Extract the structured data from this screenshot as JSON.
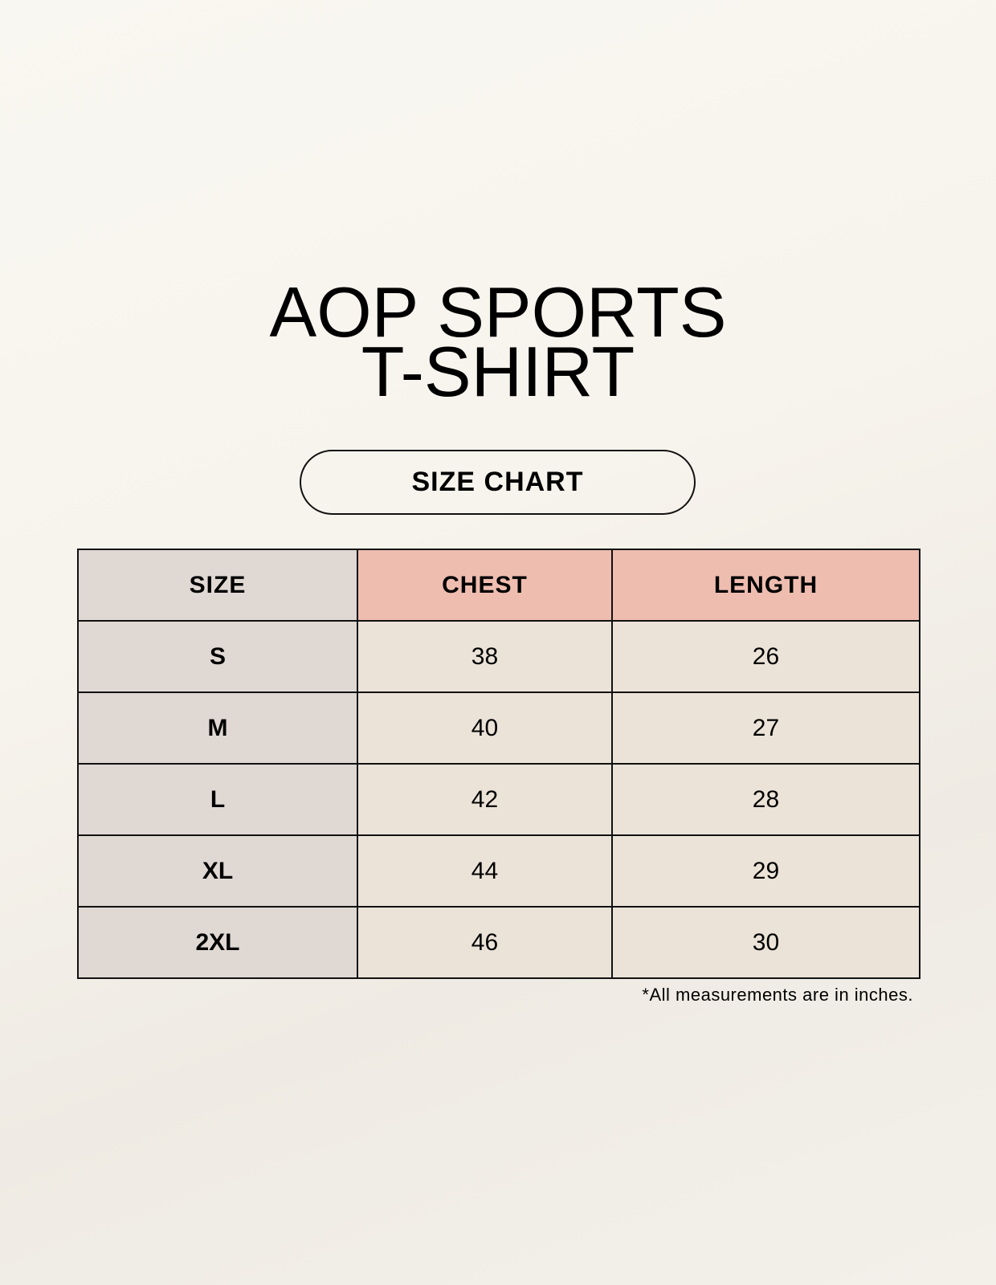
{
  "title": {
    "line1": "AOP SPORTS",
    "line2": "T-SHIRT"
  },
  "subtitle_pill": "SIZE CHART",
  "table": {
    "headers": [
      "SIZE",
      "CHEST",
      "LENGTH"
    ],
    "rows": [
      [
        "S",
        "38",
        "26"
      ],
      [
        "M",
        "40",
        "27"
      ],
      [
        "L",
        "42",
        "28"
      ],
      [
        "XL",
        "44",
        "29"
      ],
      [
        "2XL",
        "46",
        "30"
      ]
    ]
  },
  "footnote": "*All measurements are in inches.",
  "colors": {
    "header_accent": "#eebdb0",
    "size_column": "#e0d8d3",
    "cell": "#ebe3d8",
    "background": "#f9f7f1"
  }
}
